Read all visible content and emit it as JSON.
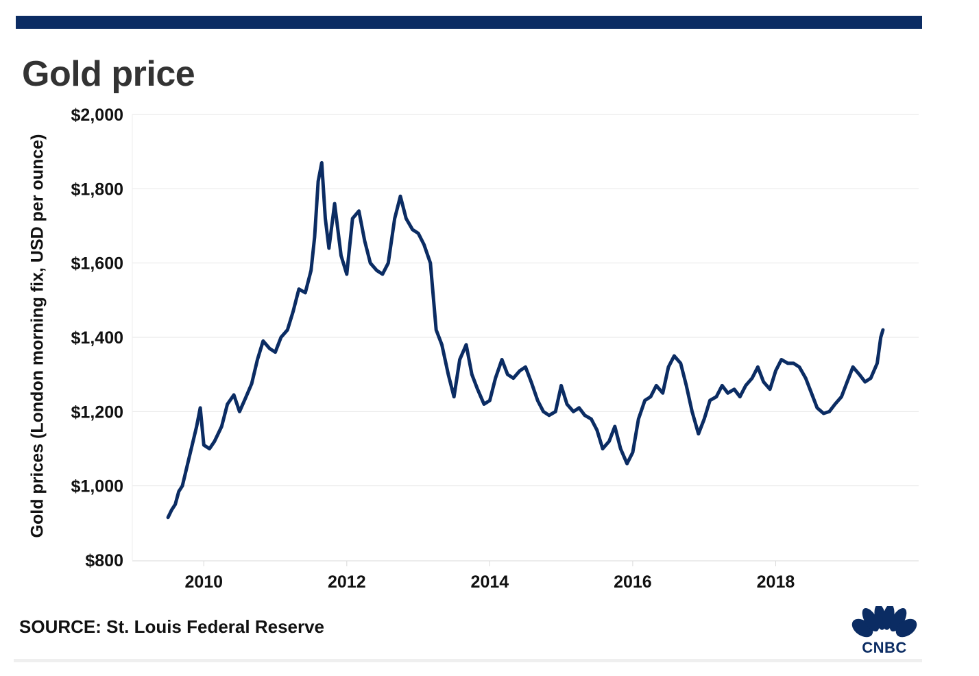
{
  "header": {
    "title": "Gold price"
  },
  "footer": {
    "source": "SOURCE: St. Louis Federal Reserve",
    "logo_text": "CNBC",
    "logo_icon": "nbc-peacock-icon"
  },
  "colors": {
    "line": "#0b2c63",
    "top_bar": "#0b2c63",
    "title": "#333333",
    "grid": "#e6e6e6"
  },
  "chart_data": {
    "type": "line",
    "title": "Gold price",
    "ylabel": "Gold prices (London morning fix, USD per ounce)",
    "xlabel": "",
    "xlim": [
      2009.0,
      2020.0
    ],
    "ylim": [
      800,
      2000
    ],
    "y_ticks": [
      800,
      1000,
      1200,
      1400,
      1600,
      1800,
      2000
    ],
    "y_tick_labels": [
      "$800",
      "$1,000",
      "$1,200",
      "$1,400",
      "$1,600",
      "$1,800",
      "$2,000"
    ],
    "x_ticks": [
      2010,
      2012,
      2014,
      2016,
      2018
    ],
    "x_tick_labels": [
      "2010",
      "2012",
      "2014",
      "2016",
      "2018"
    ],
    "grid": "horizontal",
    "legend": "none",
    "series": [
      {
        "x": [
          2009.5,
          2009.55,
          2009.6,
          2009.65,
          2009.7,
          2009.75,
          2009.8,
          2009.85,
          2009.9,
          2009.95,
          2010.0,
          2010.08,
          2010.15,
          2010.25,
          2010.33,
          2010.42,
          2010.5,
          2010.58,
          2010.67,
          2010.75,
          2010.83,
          2010.92,
          2011.0,
          2011.08,
          2011.17,
          2011.25,
          2011.33,
          2011.42,
          2011.5,
          2011.55,
          2011.6,
          2011.65,
          2011.7,
          2011.75,
          2011.83,
          2011.92,
          2012.0,
          2012.08,
          2012.17,
          2012.25,
          2012.33,
          2012.42,
          2012.5,
          2012.58,
          2012.67,
          2012.75,
          2012.83,
          2012.92,
          2013.0,
          2013.08,
          2013.17,
          2013.25,
          2013.33,
          2013.42,
          2013.5,
          2013.58,
          2013.67,
          2013.75,
          2013.83,
          2013.92,
          2014.0,
          2014.08,
          2014.17,
          2014.25,
          2014.33,
          2014.42,
          2014.5,
          2014.58,
          2014.67,
          2014.75,
          2014.83,
          2014.92,
          2015.0,
          2015.08,
          2015.17,
          2015.25,
          2015.33,
          2015.42,
          2015.5,
          2015.58,
          2015.67,
          2015.75,
          2015.83,
          2015.92,
          2016.0,
          2016.08,
          2016.17,
          2016.25,
          2016.33,
          2016.42,
          2016.5,
          2016.58,
          2016.67,
          2016.75,
          2016.83,
          2016.92,
          2017.0,
          2017.08,
          2017.17,
          2017.25,
          2017.33,
          2017.42,
          2017.5,
          2017.58,
          2017.67,
          2017.75,
          2017.83,
          2017.92,
          2018.0,
          2018.08,
          2018.17,
          2018.25,
          2018.33,
          2018.42,
          2018.5,
          2018.58,
          2018.67,
          2018.75,
          2018.83,
          2018.92,
          2019.0,
          2019.08,
          2019.17,
          2019.25,
          2019.33,
          2019.42,
          2019.47,
          2019.5
        ],
        "y": [
          915,
          935,
          950,
          985,
          1000,
          1040,
          1080,
          1120,
          1160,
          1210,
          1110,
          1100,
          1120,
          1160,
          1220,
          1245,
          1200,
          1235,
          1275,
          1340,
          1390,
          1370,
          1360,
          1400,
          1420,
          1470,
          1530,
          1520,
          1580,
          1670,
          1820,
          1870,
          1720,
          1640,
          1760,
          1620,
          1570,
          1720,
          1740,
          1660,
          1600,
          1580,
          1570,
          1600,
          1720,
          1780,
          1720,
          1690,
          1680,
          1650,
          1600,
          1420,
          1380,
          1300,
          1240,
          1340,
          1380,
          1300,
          1260,
          1220,
          1230,
          1290,
          1340,
          1300,
          1290,
          1310,
          1320,
          1280,
          1230,
          1200,
          1190,
          1200,
          1270,
          1220,
          1200,
          1210,
          1190,
          1180,
          1150,
          1100,
          1120,
          1160,
          1100,
          1060,
          1090,
          1180,
          1230,
          1240,
          1270,
          1250,
          1320,
          1350,
          1330,
          1270,
          1200,
          1140,
          1180,
          1230,
          1240,
          1270,
          1250,
          1260,
          1240,
          1270,
          1290,
          1320,
          1280,
          1260,
          1310,
          1340,
          1330,
          1330,
          1320,
          1290,
          1250,
          1210,
          1195,
          1200,
          1220,
          1240,
          1280,
          1320,
          1300,
          1280,
          1290,
          1330,
          1400,
          1420
        ]
      }
    ]
  }
}
